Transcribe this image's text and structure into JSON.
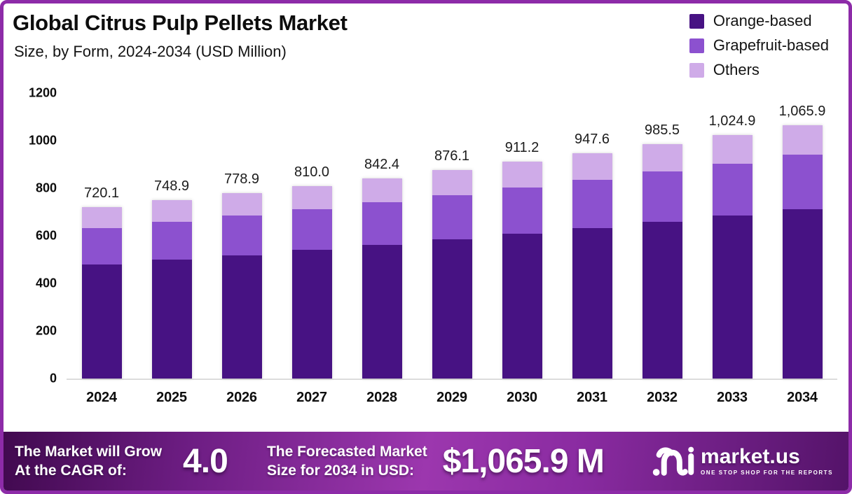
{
  "frame": {
    "border_color": "#8d2ba8",
    "background": "#ffffff"
  },
  "header": {
    "title": "Global Citrus Pulp Pellets Market",
    "subtitle": "Size, by Form, 2024-2034 (USD Million)"
  },
  "legend": {
    "items": [
      {
        "label": "Orange-based",
        "color": "#471283"
      },
      {
        "label": "Grapefruit-based",
        "color": "#8c51cf"
      },
      {
        "label": "Others",
        "color": "#cfabe8"
      }
    ]
  },
  "chart_data": {
    "type": "bar",
    "subtype": "stacked-vertical",
    "title": "Global Citrus Pulp Pellets Market",
    "subtitle": "Size, by Form, 2024-2034 (USD Million)",
    "unit": "USD Million",
    "categories": [
      "2024",
      "2025",
      "2026",
      "2027",
      "2028",
      "2029",
      "2030",
      "2031",
      "2032",
      "2033",
      "2034"
    ],
    "totals": [
      720.1,
      748.9,
      778.9,
      810.0,
      842.4,
      876.1,
      911.2,
      947.6,
      985.5,
      1024.9,
      1065.9
    ],
    "total_labels": [
      "720.1",
      "748.9",
      "778.9",
      "810.0",
      "842.4",
      "876.1",
      "911.2",
      "947.6",
      "985.5",
      "1,024.9",
      "1,065.9"
    ],
    "series": [
      {
        "name": "Orange-based",
        "color": "#471283",
        "values_estimated": true,
        "values": [
          479,
          499,
          519,
          540,
          562,
          585,
          609,
          633,
          659,
          685,
          712
        ]
      },
      {
        "name": "Grapefruit-based",
        "color": "#8c51cf",
        "values_estimated": true,
        "values": [
          154,
          160,
          167,
          173,
          180,
          187,
          195,
          203,
          211,
          219,
          230
        ]
      },
      {
        "name": "Others",
        "color": "#cfabe8",
        "values_estimated": true,
        "values": [
          87.1,
          89.9,
          92.9,
          97.0,
          100.4,
          104.1,
          107.2,
          111.6,
          115.5,
          120.9,
          123.9
        ]
      }
    ],
    "ylim": [
      0,
      1200
    ],
    "yticks": [
      0,
      200,
      400,
      600,
      800,
      1000,
      1200
    ],
    "grid": false,
    "legend_position": "top-right"
  },
  "banner": {
    "cagr_label_line1": "The Market will Grow",
    "cagr_label_line2": "At the CAGR of:",
    "cagr_value": "4.0",
    "forecast_label_line1": "The Forecasted Market",
    "forecast_label_line2": "Size for 2034 in USD:",
    "forecast_value": "$1,065.9 M",
    "logo_name": "market.us",
    "logo_tagline": "ONE STOP SHOP FOR THE REPORTS"
  }
}
